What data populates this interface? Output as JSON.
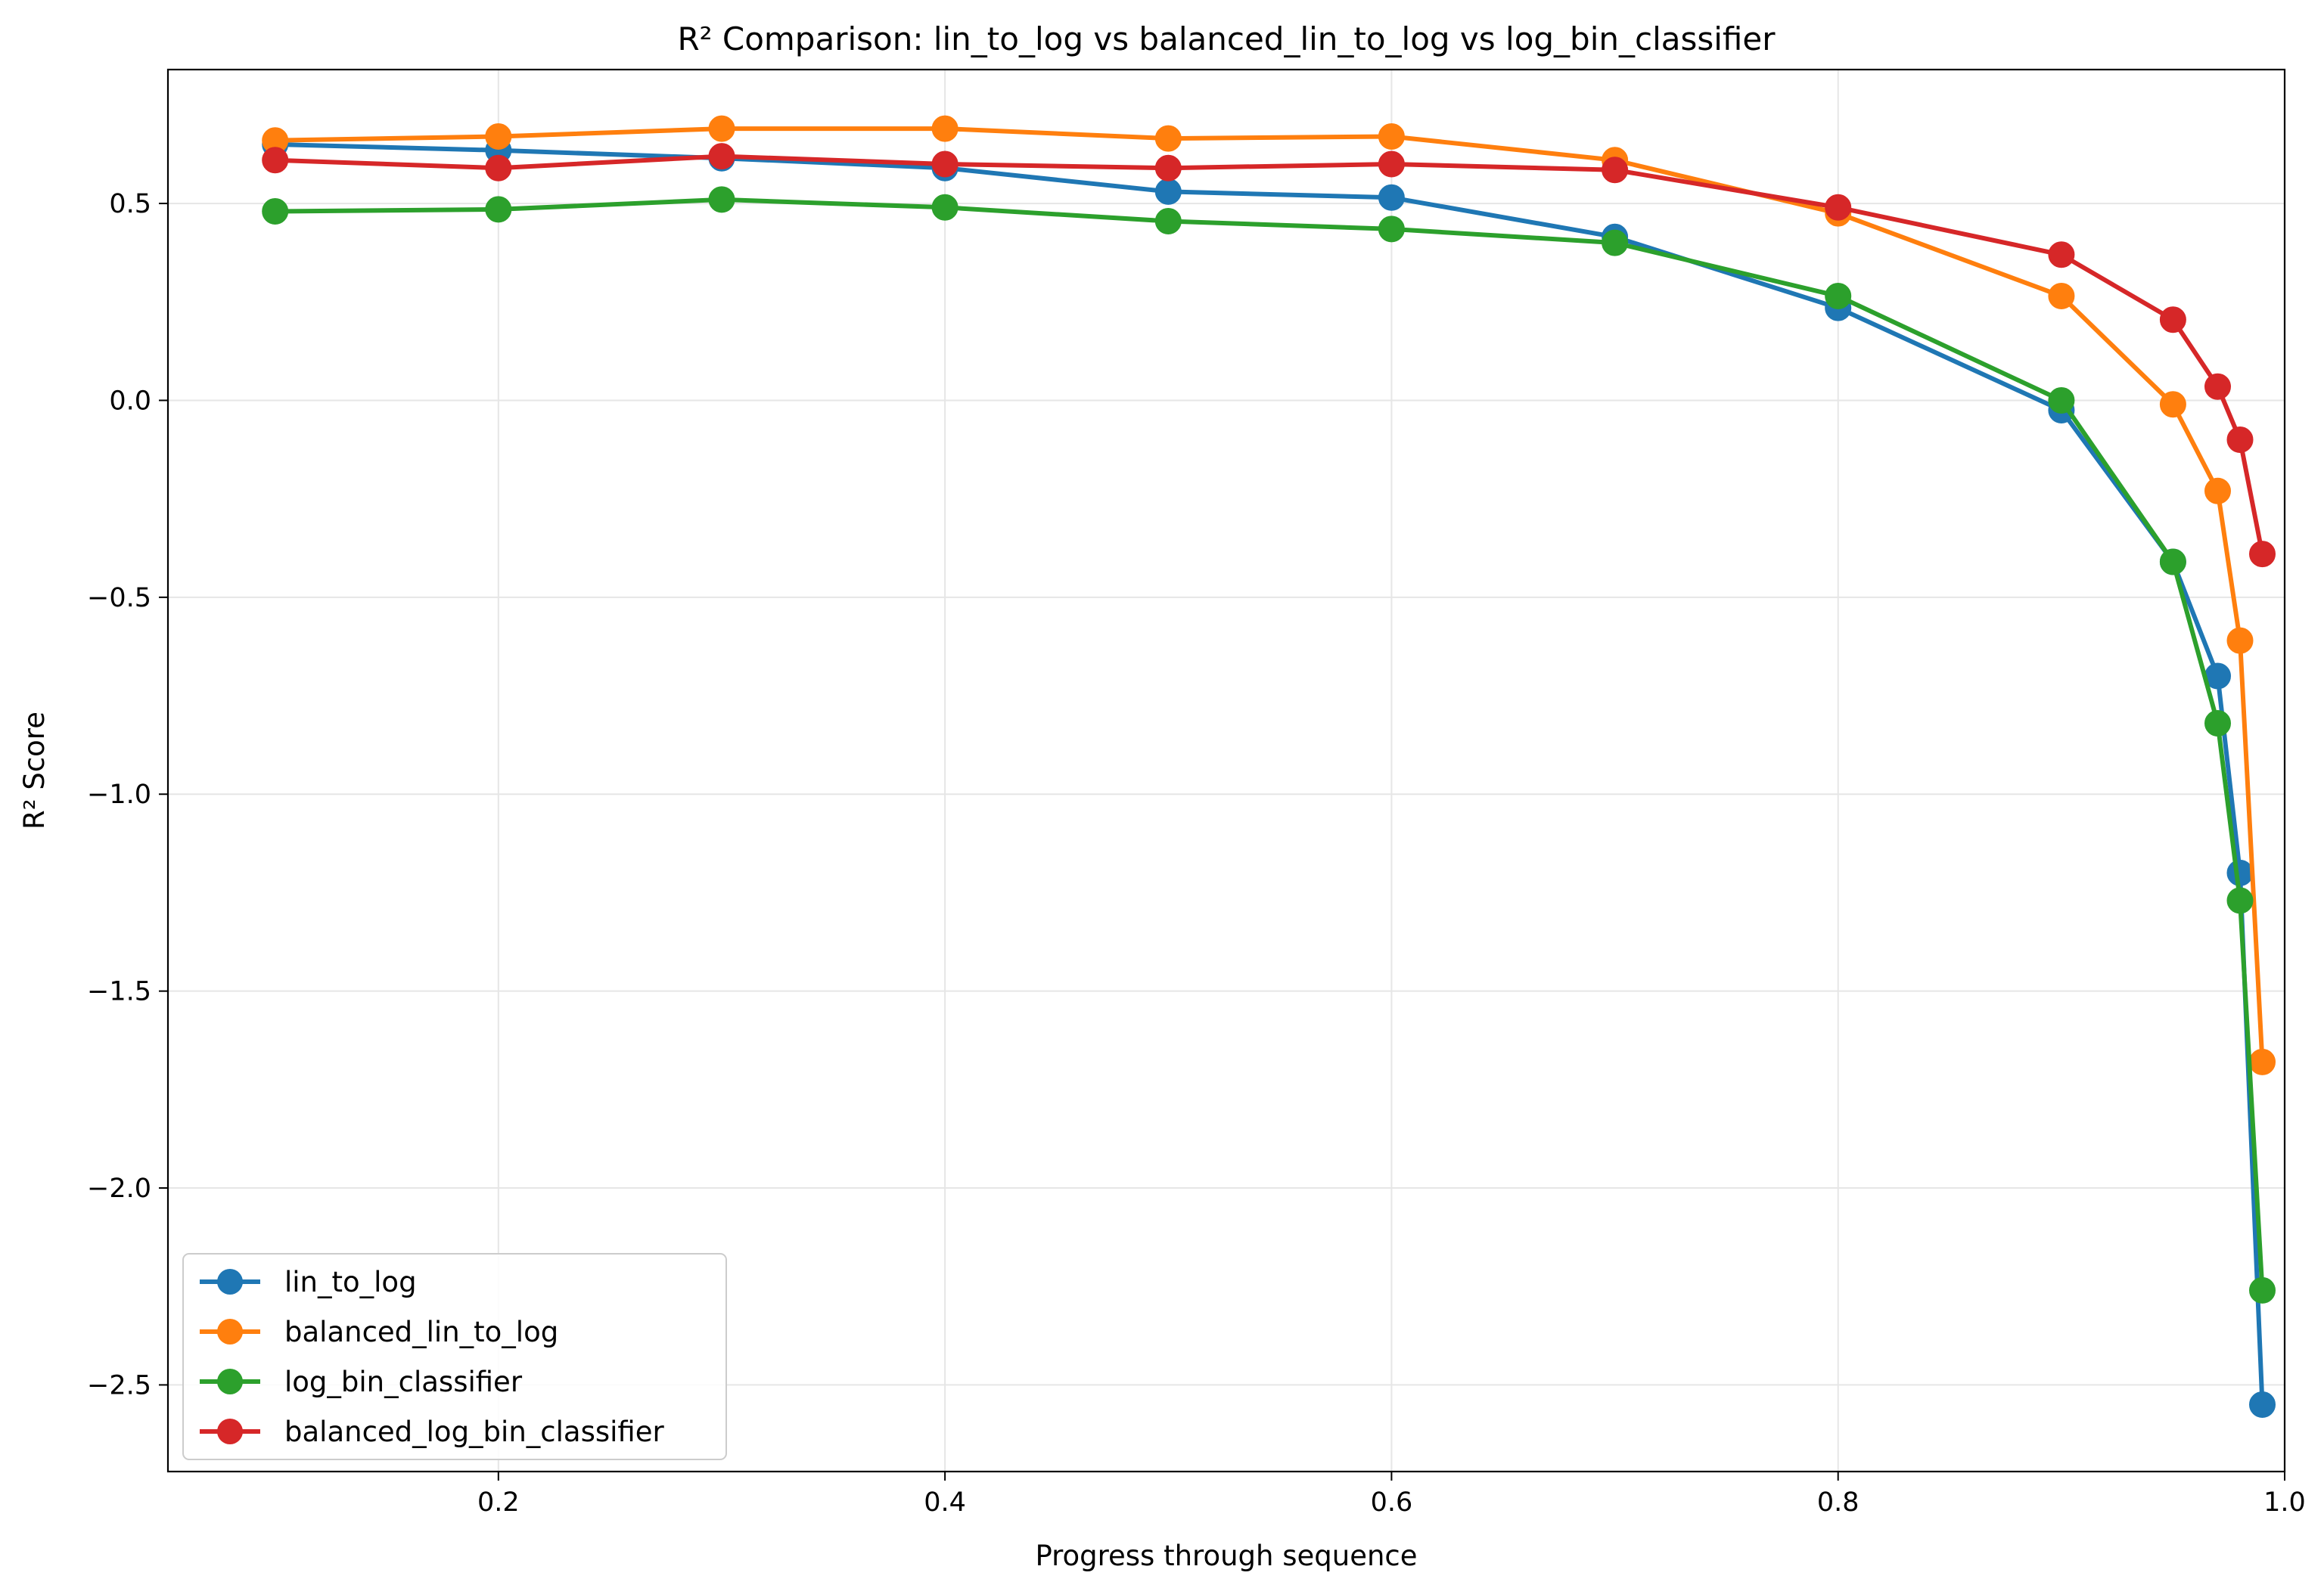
{
  "chart_data": {
    "type": "line",
    "title": "R² Comparison: lin_to_log vs balanced_lin_to_log vs log_bin_classifier",
    "xlabel": "Progress through sequence",
    "ylabel": "R² Score",
    "xlim": [
      0.052,
      1.0
    ],
    "ylim": [
      -2.72,
      0.84
    ],
    "x_ticks": [
      0.2,
      0.4,
      0.6,
      0.8,
      1.0
    ],
    "x_tick_labels": [
      "0.2",
      "0.4",
      "0.6",
      "0.8",
      "1.0"
    ],
    "y_ticks": [
      0.5,
      0.0,
      -0.5,
      -1.0,
      -1.5,
      -2.0,
      -2.5
    ],
    "y_tick_labels": [
      "0.5",
      "0.0",
      "−0.5",
      "−1.0",
      "−1.5",
      "−2.0",
      "−2.5"
    ],
    "grid": true,
    "legend_position": "bottom-left",
    "x": [
      0.1,
      0.2,
      0.3,
      0.4,
      0.5,
      0.6,
      0.7,
      0.8,
      0.9,
      0.95,
      0.97,
      0.98,
      0.99
    ],
    "series": [
      {
        "name": "lin_to_log",
        "color": "#1f77b4",
        "values": [
          0.65,
          0.635,
          0.615,
          0.59,
          0.53,
          0.515,
          0.415,
          0.235,
          -0.025,
          -0.41,
          -0.7,
          -1.2,
          -2.55
        ]
      },
      {
        "name": "balanced_lin_to_log",
        "color": "#ff7f0e",
        "values": [
          0.66,
          0.67,
          0.69,
          0.69,
          0.665,
          0.67,
          0.61,
          0.475,
          0.265,
          -0.01,
          -0.23,
          -0.61,
          -1.68
        ]
      },
      {
        "name": "log_bin_classifier",
        "color": "#2ca02c",
        "values": [
          0.48,
          0.485,
          0.51,
          0.49,
          0.455,
          0.435,
          0.4,
          0.265,
          0.0,
          -0.41,
          -0.82,
          -1.27,
          -2.26
        ]
      },
      {
        "name": "balanced_log_bin_classifier",
        "color": "#d62728",
        "values": [
          0.61,
          0.59,
          0.62,
          0.6,
          0.59,
          0.6,
          0.585,
          0.49,
          0.37,
          0.205,
          0.035,
          -0.1,
          -0.39
        ]
      }
    ]
  }
}
